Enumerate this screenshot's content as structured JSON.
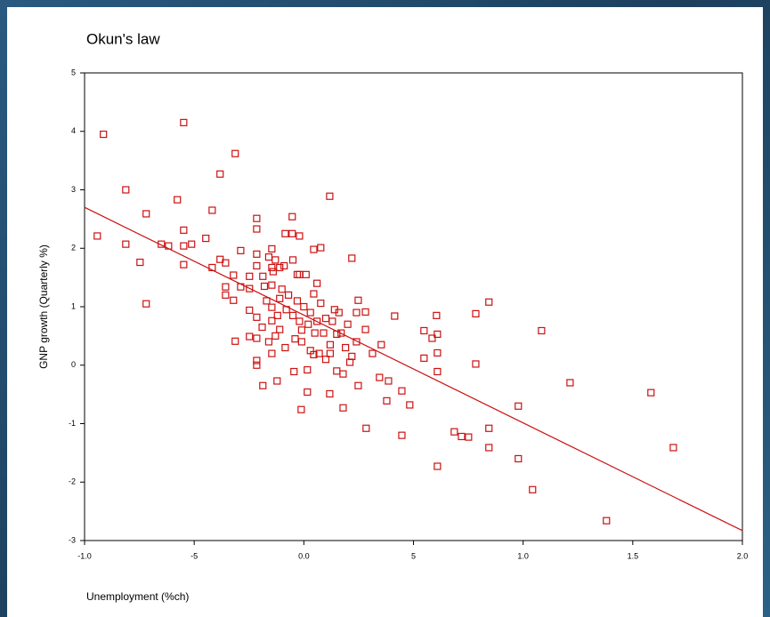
{
  "chart_data": {
    "type": "scatter",
    "title": "Okun's law",
    "x_label": "Unemployment (%ch)",
    "y_label": "GNP growth (Quarterly %)",
    "color": "#cc1111",
    "xlim": [
      -10,
      20
    ],
    "ylim": [
      -3,
      5
    ],
    "xticks": [
      {
        "value": -10,
        "label": "-1.0"
      },
      -5,
      {
        "value": 0,
        "label": "0.0"
      },
      5,
      {
        "value": 10,
        "label": "1.0"
      },
      {
        "value": 15,
        "label": "1.5"
      },
      {
        "value": 20,
        "label": "2.0"
      }
    ],
    "yticks": [
      -3,
      -2,
      -1,
      0,
      1,
      2,
      3,
      4,
      5
    ],
    "trendline": {
      "x": [
        -10,
        20
      ],
      "y": [
        2.7,
        -2.83
      ]
    },
    "x": [
      -9.14,
      -9.42,
      -8.12,
      -8.12,
      -7.19,
      -7.47,
      -7.19,
      -6.5,
      -6.17,
      -5.77,
      -5.48,
      -5.48,
      -5.48,
      -5.48,
      -5.12,
      -4.47,
      -4.18,
      -3.82,
      -3.82,
      -3.13,
      -4.18,
      -3.57,
      -3.21,
      -2.88,
      -3.57,
      -3.57,
      -3.21,
      -3.13,
      -2.88,
      -2.48,
      -2.48,
      -2.48,
      -2.48,
      -2.15,
      -2.15,
      -2.15,
      -2.15,
      -2.15,
      -2.15,
      -2.15,
      -2.15,
      -1.87,
      -1.87,
      -1.46,
      -1.46,
      -1.46,
      -1.46,
      -1.46,
      -1.46,
      -1.22,
      -1.1,
      -1.1,
      -1.1,
      -0.85,
      -0.85,
      -0.53,
      -0.53,
      -0.45,
      -0.2,
      -0.2,
      -0.12,
      0.16,
      0.16,
      0.45,
      0.77,
      0.45,
      0.45,
      0.77,
      1.18,
      1.18,
      1.5,
      1.79,
      1.79,
      2.19,
      2.19,
      2.48,
      2.48,
      2.81,
      2.81,
      2.84,
      3.13,
      3.53,
      3.45,
      3.78,
      3.86,
      4.14,
      4.47,
      4.47,
      4.83,
      5.48,
      5.48,
      6.05,
      6.09,
      6.09,
      6.09,
      6.09,
      5.85,
      7.84,
      7.84,
      8.44,
      8.44,
      8.44,
      6.86,
      7.19,
      7.51,
      9.78,
      9.78,
      10.43,
      10.84,
      12.14,
      13.8,
      15.83,
      16.85,
      -0.5,
      -0.9,
      -0.3,
      0.1,
      -1.0,
      -0.7,
      -0.3,
      0,
      0.3,
      -0.5,
      -0.2,
      0.2,
      0.6,
      1.0,
      1.3,
      0.9,
      1.4,
      1.6,
      2.0,
      2.4,
      2.4,
      1.9,
      1.2,
      0.5,
      -0.1,
      -0.4,
      -0.1,
      0.3,
      0.7,
      1.0,
      1.2,
      -1.3,
      -1.6,
      -0.8,
      -1.3,
      -1.8,
      -1.7,
      -1.2,
      -1.9,
      -1.6,
      -1.4,
      0.6,
      1.7,
      2.1,
      1.5
    ],
    "values": [
      3.95,
      2.21,
      3.0,
      2.07,
      2.59,
      1.76,
      1.05,
      2.07,
      2.04,
      2.83,
      4.15,
      2.31,
      2.04,
      1.72,
      2.07,
      2.17,
      2.65,
      3.27,
      1.81,
      3.62,
      1.67,
      1.75,
      1.54,
      1.96,
      1.34,
      1.2,
      1.11,
      0.41,
      1.34,
      1.31,
      1.52,
      0.94,
      0.49,
      2.51,
      2.33,
      1.9,
      1.7,
      0.82,
      0.46,
      0.08,
      0,
      1.52,
      -0.35,
      1.99,
      1.67,
      1.37,
      0.99,
      0.76,
      0.2,
      -0.27,
      1.67,
      1.14,
      0.61,
      2.25,
      0.3,
      2.54,
      2.25,
      -0.11,
      2.21,
      1.55,
      -0.76,
      -0.46,
      -0.08,
      1.98,
      2.01,
      0.18,
      1.22,
      1.06,
      2.89,
      -0.49,
      0.53,
      -0.73,
      -0.15,
      1.83,
      0.15,
      1.11,
      -0.35,
      0.91,
      0.61,
      -1.08,
      0.2,
      0.35,
      -0.21,
      -0.61,
      -0.27,
      0.84,
      -0.44,
      -1.2,
      -0.68,
      0.59,
      0.12,
      0.85,
      0.53,
      0.21,
      -0.11,
      -1.73,
      0.46,
      0.88,
      0.02,
      1.08,
      -1.08,
      -1.41,
      -1.14,
      -1.22,
      -1.23,
      -0.7,
      -1.6,
      -2.13,
      0.59,
      -0.3,
      -2.66,
      -0.47,
      -1.41,
      1.8,
      1.7,
      1.55,
      1.55,
      1.3,
      1.2,
      1.1,
      1.0,
      0.9,
      0.85,
      0.75,
      0.7,
      0.75,
      0.8,
      0.75,
      0.55,
      0.95,
      0.9,
      0.7,
      0.9,
      0.4,
      0.3,
      0.35,
      0.55,
      0.6,
      0.45,
      0.4,
      0.25,
      0.2,
      0.1,
      0.2,
      0.5,
      0.4,
      0.95,
      1.8,
      1.35,
      1.1,
      0.85,
      0.65,
      1.85,
      1.6,
      1.4,
      0.55,
      0.05,
      -0.1
    ]
  }
}
